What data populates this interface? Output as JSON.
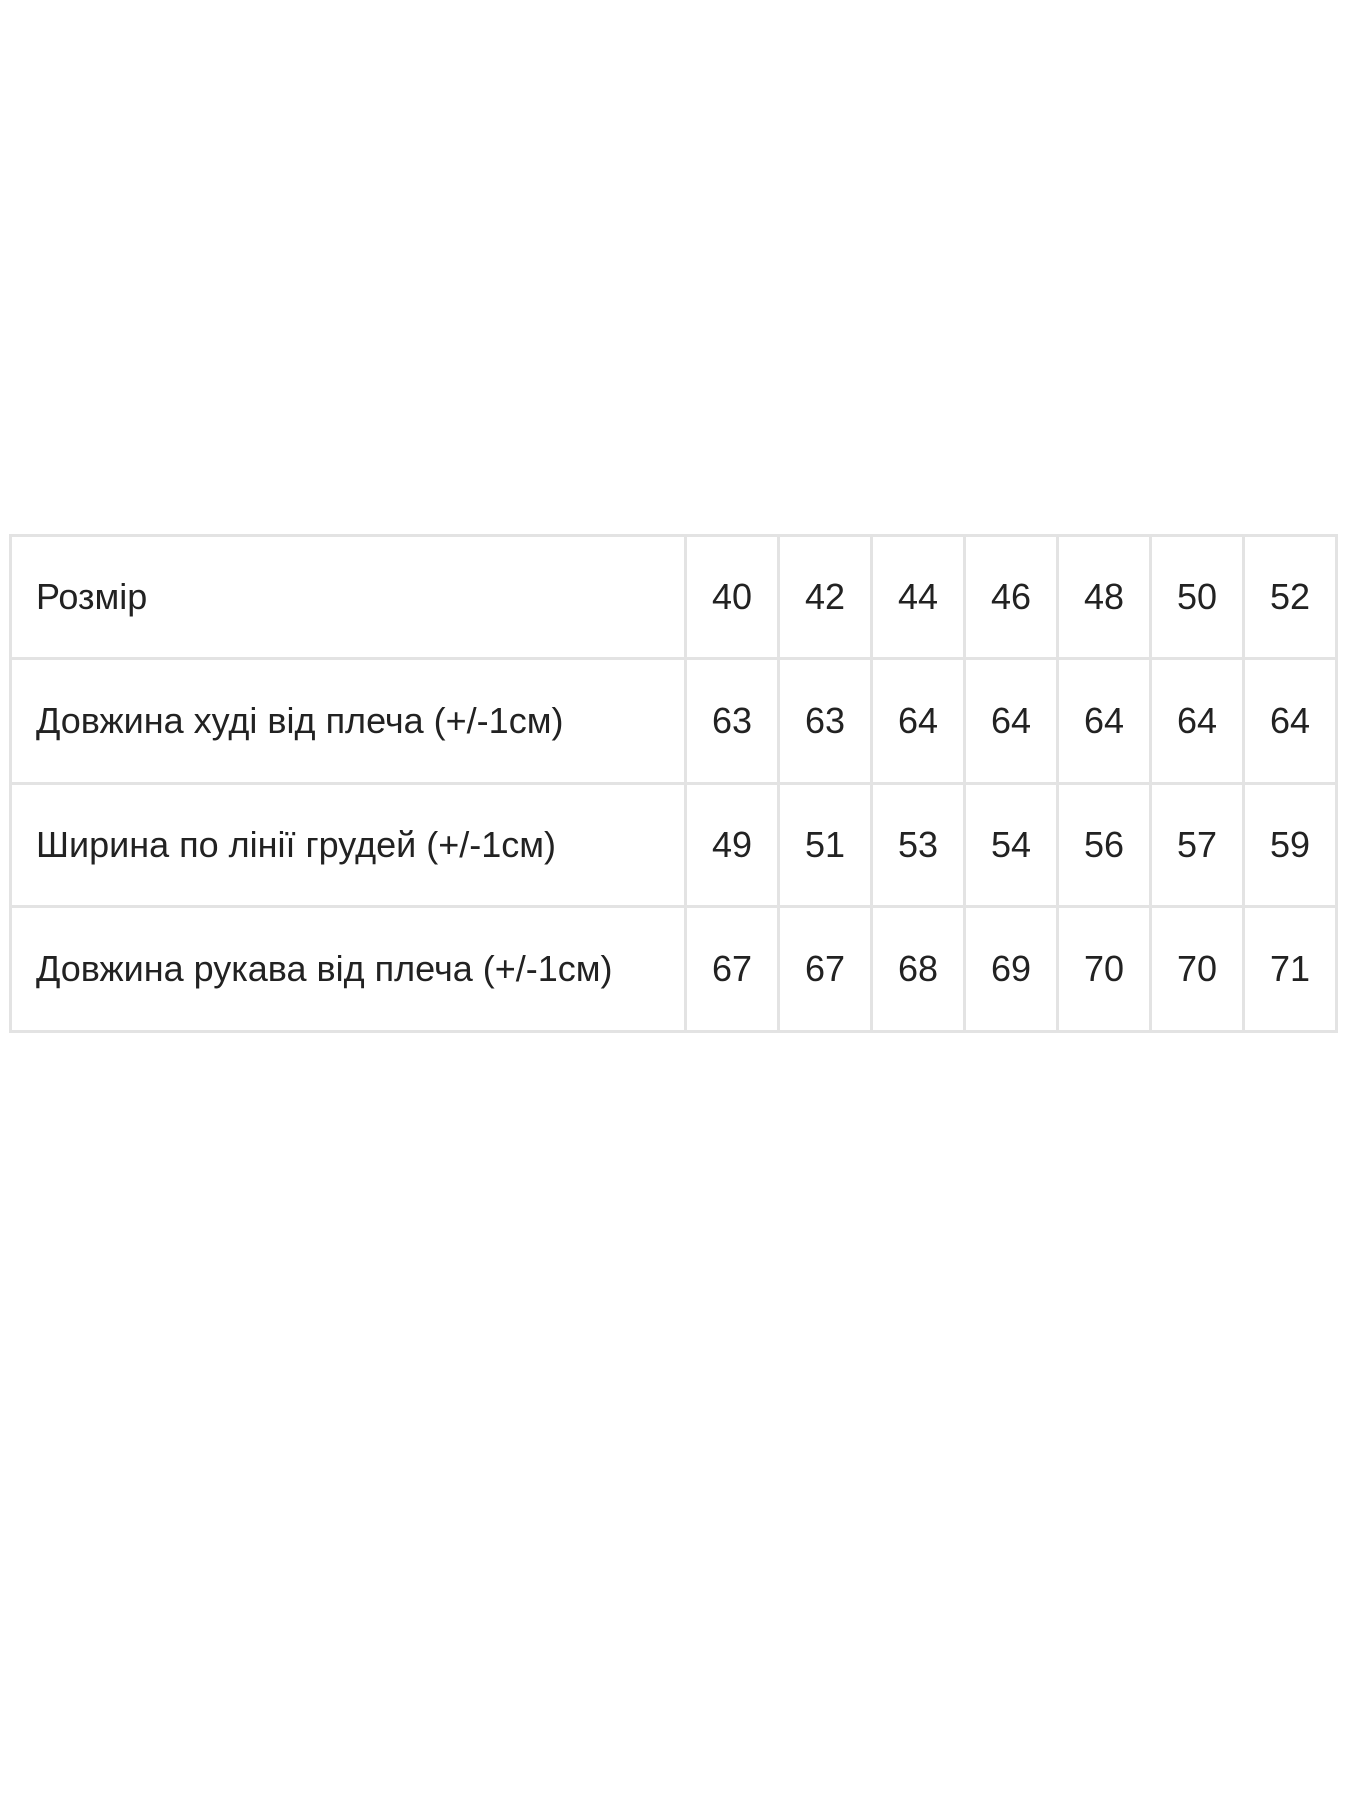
{
  "table": {
    "rows": [
      {
        "label": "Розмір",
        "values": [
          "40",
          "42",
          "44",
          "46",
          "48",
          "50",
          "52"
        ]
      },
      {
        "label": "Довжина худі від плеча (+/-1см)",
        "values": [
          "63",
          "63",
          "64",
          "64",
          "64",
          "64",
          "64"
        ]
      },
      {
        "label": "Ширина по лінії грудей (+/-1см)",
        "values": [
          "49",
          "51",
          "53",
          "54",
          "56",
          "57",
          "59"
        ]
      },
      {
        "label": "Довжина рукава від плеча (+/-1см)",
        "values": [
          "67",
          "67",
          "68",
          "69",
          "70",
          "70",
          "71"
        ]
      }
    ]
  }
}
